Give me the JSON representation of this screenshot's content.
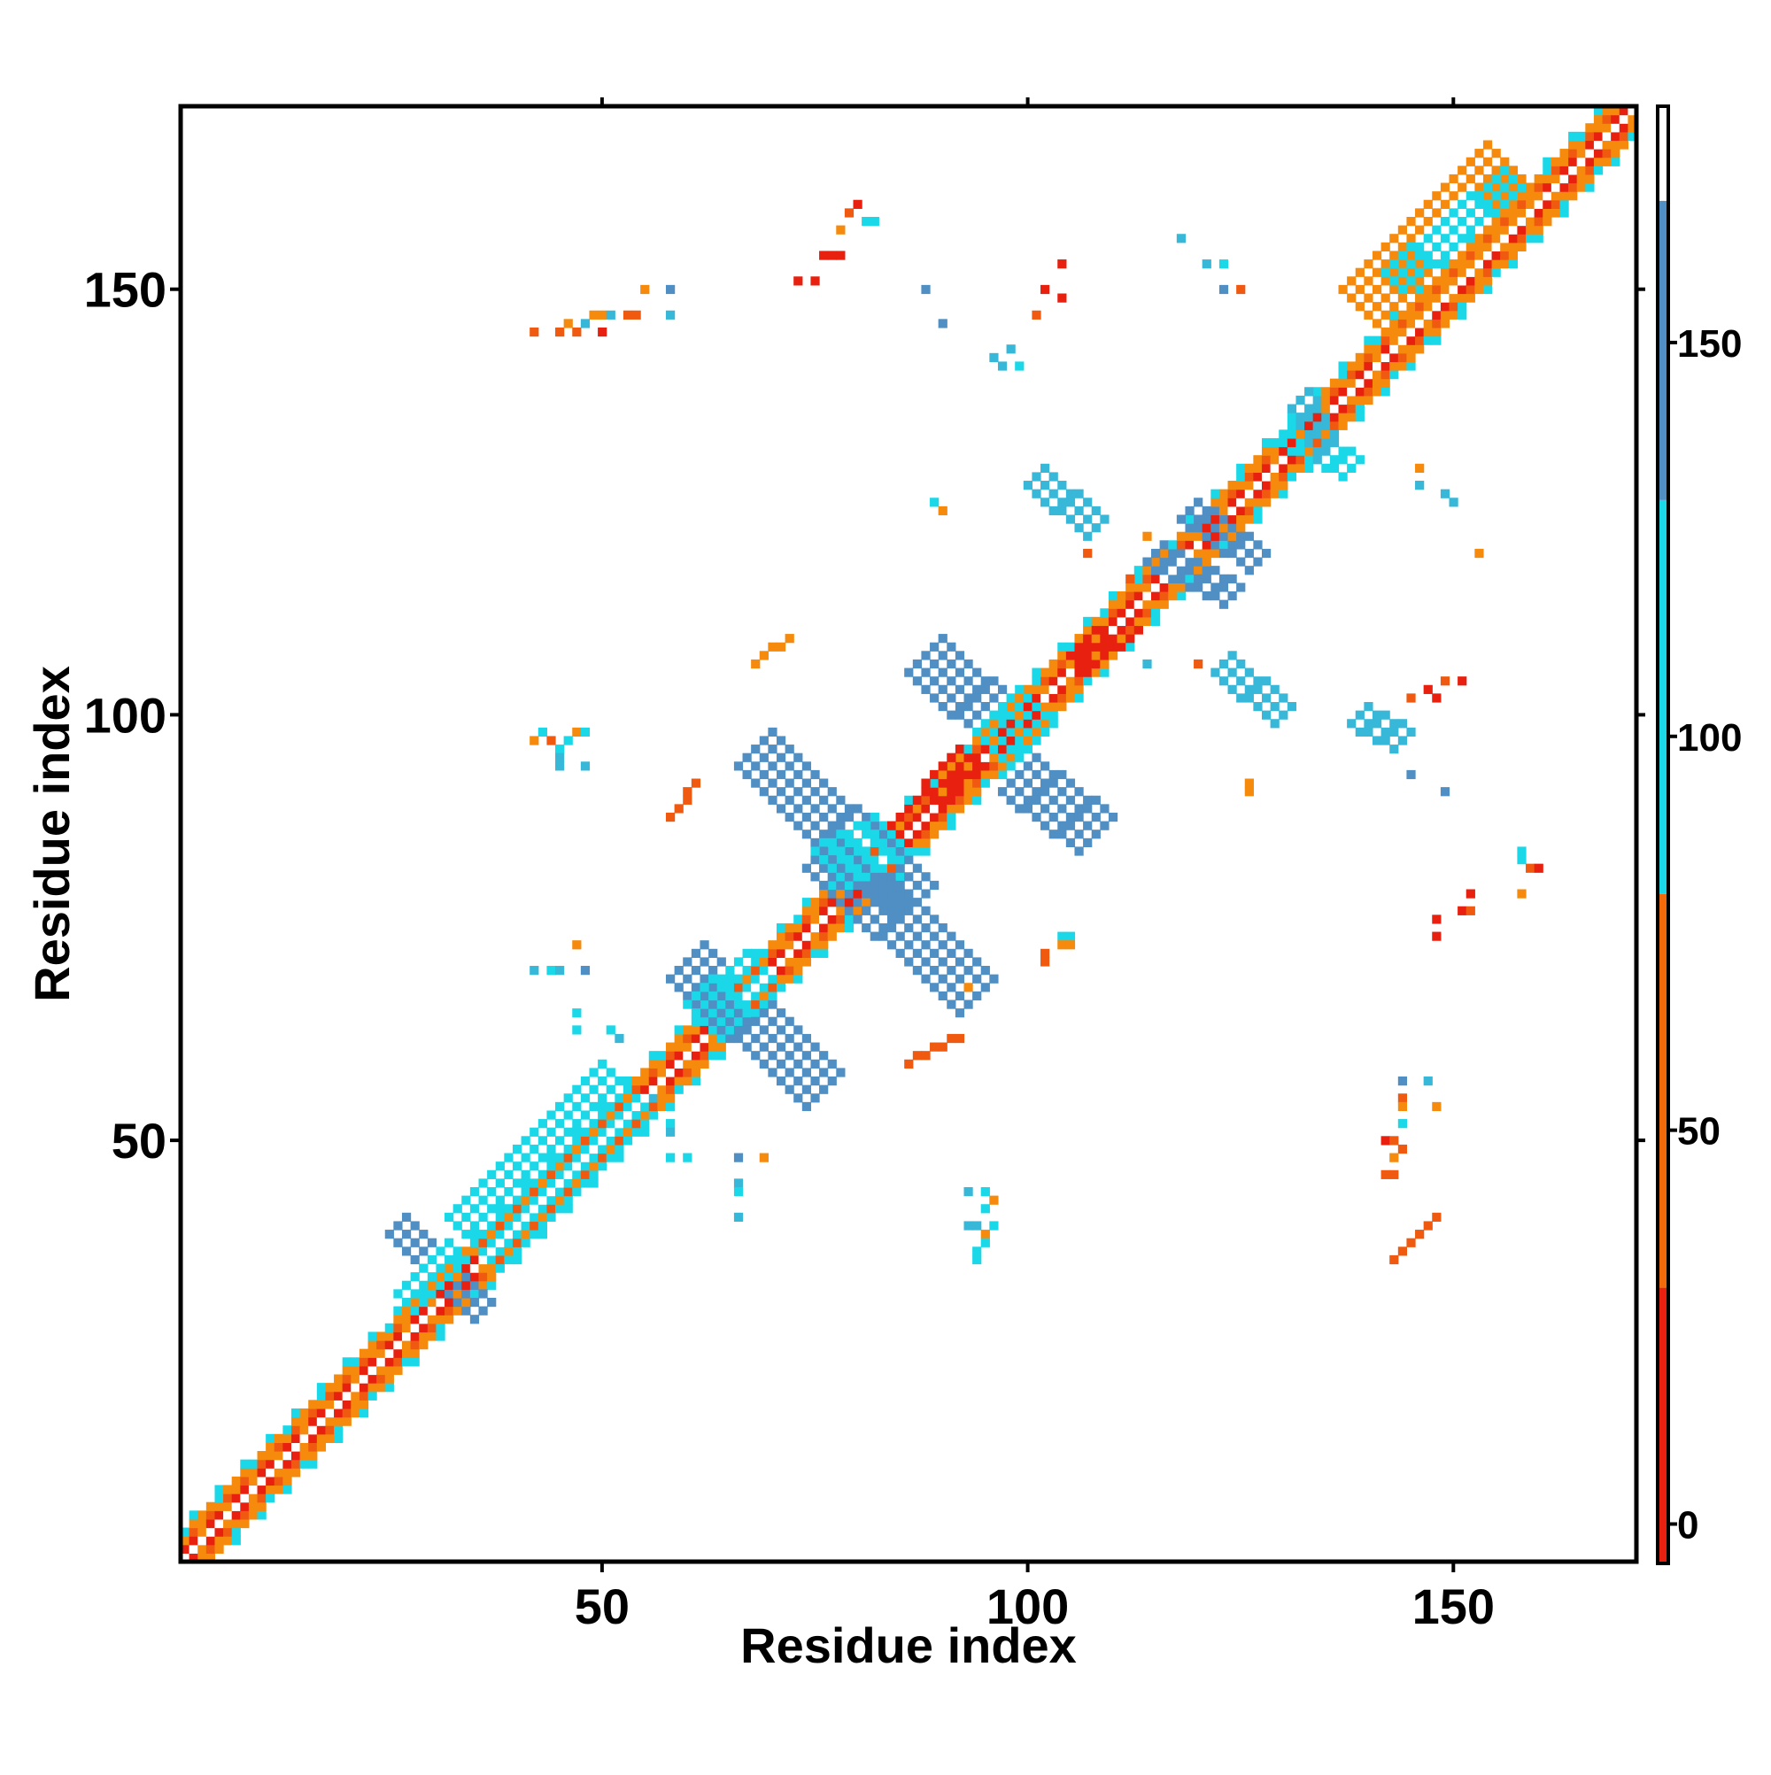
{
  "chart_data": {
    "type": "heatmap",
    "title": "",
    "xlabel": "Residue index",
    "ylabel": "Residue index",
    "xlim": [
      1,
      171
    ],
    "ylim": [
      1,
      171
    ],
    "xticks": [
      50,
      100,
      150
    ],
    "yticks": [
      50,
      100,
      150
    ],
    "grid": false,
    "colorbar": {
      "position": "right",
      "range": [
        -5,
        180
      ],
      "ticks": [
        0,
        50,
        100,
        150
      ],
      "bands": [
        {
          "from": -5,
          "to": 30,
          "color": "#e8200f"
        },
        {
          "from": 30,
          "to": 80,
          "color": "#f26a0a"
        },
        {
          "from": 80,
          "to": 130,
          "color": "#1ad8e8"
        },
        {
          "from": 130,
          "to": 168,
          "color": "#4f8fc4"
        },
        {
          "from": 168,
          "to": 180,
          "color": "#ffffff"
        }
      ]
    },
    "palette": {
      "red": "#e8200f",
      "orange_red": "#f05a10",
      "orange": "#f58a0c",
      "cyan": "#1ad8e8",
      "sky": "#38b8d8",
      "steel": "#4f8fc4"
    },
    "diagonal_band": {
      "from": 1,
      "to": 171,
      "halfwidth": 4
    },
    "segments": [
      {
        "x": [
          26,
          36
        ],
        "y": [
          40,
          30
        ],
        "color": "#4f8fc4",
        "halfwidth": 1
      },
      {
        "x": [
          27,
          33
        ],
        "y": [
          31,
          37
        ],
        "color": "#1ad8e8",
        "halfwidth": 1
      },
      {
        "x": [
          35,
          53
        ],
        "y": [
          38,
          56
        ],
        "color": "#1ad8e8",
        "halfwidth": 3
      },
      {
        "x": [
          60,
          76
        ],
        "y": [
          71,
          56
        ],
        "color": "#4f8fc4",
        "halfwidth": 2
      },
      {
        "x": [
          62,
          69
        ],
        "y": [
          64,
          70
        ],
        "color": "#1ad8e8",
        "halfwidth": 2
      },
      {
        "x": [
          68,
          87
        ],
        "y": [
          96,
          78
        ],
        "color": "#4f8fc4",
        "halfwidth": 2
      },
      {
        "x": [
          76,
          94
        ],
        "y": [
          84,
          67
        ],
        "color": "#4f8fc4",
        "halfwidth": 2
      },
      {
        "x": [
          77,
          84
        ],
        "y": [
          82,
          86
        ],
        "color": "#1ad8e8",
        "halfwidth": 2
      },
      {
        "x": [
          88,
          99
        ],
        "y": [
          107,
          97
        ],
        "color": "#4f8fc4",
        "halfwidth": 2
      },
      {
        "x": [
          99,
          108
        ],
        "y": [
          93,
          86
        ],
        "color": "#4f8fc4",
        "halfwidth": 2
      },
      {
        "x": [
          96,
          101
        ],
        "y": [
          96,
          101
        ],
        "color": "#1ad8e8",
        "halfwidth": 2
      },
      {
        "x": [
          101,
          108
        ],
        "y": [
          128,
          122
        ],
        "color": "#38b8d8",
        "halfwidth": 1
      },
      {
        "x": [
          115,
          124
        ],
        "y": [
          119,
          114
        ],
        "color": "#4f8fc4",
        "halfwidth": 1
      },
      {
        "x": [
          119,
          127
        ],
        "y": [
          124,
          118
        ],
        "color": "#4f8fc4",
        "halfwidth": 1
      },
      {
        "x": [
          130,
          138
        ],
        "y": [
          133,
          129
        ],
        "color": "#1ad8e8",
        "halfwidth": 1
      },
      {
        "x": [
          132,
          135
        ],
        "y": [
          137,
          131
        ],
        "color": "#38b8d8",
        "halfwidth": 1
      },
      {
        "x": [
          123,
          130
        ],
        "y": [
          106,
          100
        ],
        "color": "#38b8d8",
        "halfwidth": 1
      },
      {
        "x": [
          139,
          144
        ],
        "y": [
          100,
          97
        ],
        "color": "#38b8d8",
        "halfwidth": 1
      },
      {
        "x": [
          140,
          157
        ],
        "y": [
          147,
          164
        ],
        "color": "#f58a0c",
        "halfwidth": 3
      },
      {
        "x": [
          143,
          157
        ],
        "y": [
          151,
          163
        ],
        "color": "#1ad8e8",
        "halfwidth": 1
      },
      {
        "x": [
          143,
          148
        ],
        "y": [
          36,
          41
        ],
        "color": "#f05a10",
        "halfwidth": 0
      },
      {
        "x": [
          86,
          92
        ],
        "y": [
          59,
          62
        ],
        "color": "#f05a10",
        "halfwidth": 0
      },
      {
        "x": [
          58,
          61
        ],
        "y": [
          88,
          92
        ],
        "color": "#f05a10",
        "halfwidth": 0
      },
      {
        "x": [
          68,
          72
        ],
        "y": [
          106,
          109
        ],
        "color": "#f58a0c",
        "halfwidth": 0
      },
      {
        "x": [
          106,
          112
        ],
        "y": [
          106,
          111
        ],
        "color": "#e8200f",
        "halfwidth": 1
      },
      {
        "x": [
          85,
          93
        ],
        "y": [
          86,
          95
        ],
        "color": "#e8200f",
        "halfwidth": 1
      }
    ],
    "points": [
      {
        "x": 80,
        "y": 160,
        "color": "#e8200f"
      },
      {
        "x": 79,
        "y": 159,
        "color": "#f05a10"
      },
      {
        "x": 81,
        "y": 158,
        "color": "#1ad8e8"
      },
      {
        "x": 82,
        "y": 158,
        "color": "#1ad8e8"
      },
      {
        "x": 78,
        "y": 157,
        "color": "#f58a0c"
      },
      {
        "x": 76,
        "y": 154,
        "color": "#e8200f"
      },
      {
        "x": 77,
        "y": 154,
        "color": "#e8200f"
      },
      {
        "x": 78,
        "y": 154,
        "color": "#e8200f"
      },
      {
        "x": 73,
        "y": 151,
        "color": "#e8200f"
      },
      {
        "x": 75,
        "y": 151,
        "color": "#e8200f"
      },
      {
        "x": 55,
        "y": 150,
        "color": "#f58a0c"
      },
      {
        "x": 58,
        "y": 150,
        "color": "#4f8fc4"
      },
      {
        "x": 49,
        "y": 147,
        "color": "#f58a0c"
      },
      {
        "x": 50,
        "y": 147,
        "color": "#f58a0c"
      },
      {
        "x": 51,
        "y": 147,
        "color": "#38b8d8"
      },
      {
        "x": 53,
        "y": 147,
        "color": "#f05a10"
      },
      {
        "x": 54,
        "y": 147,
        "color": "#f05a10"
      },
      {
        "x": 58,
        "y": 147,
        "color": "#38b8d8"
      },
      {
        "x": 42,
        "y": 145,
        "color": "#f05a10"
      },
      {
        "x": 45,
        "y": 145,
        "color": "#f05a10"
      },
      {
        "x": 47,
        "y": 145,
        "color": "#f05a10"
      },
      {
        "x": 50,
        "y": 145,
        "color": "#e8200f"
      },
      {
        "x": 46,
        "y": 146,
        "color": "#f58a0c"
      },
      {
        "x": 48,
        "y": 146,
        "color": "#38b8d8"
      },
      {
        "x": 88,
        "y": 150,
        "color": "#4f8fc4"
      },
      {
        "x": 90,
        "y": 146,
        "color": "#4f8fc4"
      },
      {
        "x": 104,
        "y": 153,
        "color": "#e8200f"
      },
      {
        "x": 104,
        "y": 149,
        "color": "#e8200f"
      },
      {
        "x": 102,
        "y": 150,
        "color": "#e8200f"
      },
      {
        "x": 101,
        "y": 147,
        "color": "#f05a10"
      },
      {
        "x": 98,
        "y": 143,
        "color": "#38b8d8"
      },
      {
        "x": 96,
        "y": 142,
        "color": "#38b8d8"
      },
      {
        "x": 97,
        "y": 141,
        "color": "#38b8d8"
      },
      {
        "x": 99,
        "y": 141,
        "color": "#1ad8e8"
      },
      {
        "x": 118,
        "y": 156,
        "color": "#38b8d8"
      },
      {
        "x": 121,
        "y": 153,
        "color": "#38b8d8"
      },
      {
        "x": 123,
        "y": 153,
        "color": "#1ad8e8"
      },
      {
        "x": 123,
        "y": 150,
        "color": "#4f8fc4"
      },
      {
        "x": 125,
        "y": 150,
        "color": "#f05a10"
      },
      {
        "x": 89,
        "y": 125,
        "color": "#1ad8e8"
      },
      {
        "x": 90,
        "y": 124,
        "color": "#f58a0c"
      },
      {
        "x": 107,
        "y": 119,
        "color": "#f05a10"
      },
      {
        "x": 114,
        "y": 121,
        "color": "#f58a0c"
      },
      {
        "x": 112,
        "y": 116,
        "color": "#f05a10"
      },
      {
        "x": 146,
        "y": 127,
        "color": "#38b8d8"
      },
      {
        "x": 149,
        "y": 126,
        "color": "#38b8d8"
      },
      {
        "x": 150,
        "y": 125,
        "color": "#38b8d8"
      },
      {
        "x": 146,
        "y": 129,
        "color": "#f58a0c"
      },
      {
        "x": 153,
        "y": 119,
        "color": "#f58a0c"
      },
      {
        "x": 114,
        "y": 106,
        "color": "#38b8d8"
      },
      {
        "x": 120,
        "y": 106,
        "color": "#f05a10"
      },
      {
        "x": 149,
        "y": 104,
        "color": "#f05a10"
      },
      {
        "x": 151,
        "y": 104,
        "color": "#e8200f"
      },
      {
        "x": 147,
        "y": 103,
        "color": "#e8200f"
      },
      {
        "x": 145,
        "y": 102,
        "color": "#f05a10"
      },
      {
        "x": 148,
        "y": 102,
        "color": "#e8200f"
      },
      {
        "x": 145,
        "y": 93,
        "color": "#4f8fc4"
      },
      {
        "x": 149,
        "y": 91,
        "color": "#4f8fc4"
      },
      {
        "x": 126,
        "y": 91,
        "color": "#f58a0c"
      },
      {
        "x": 126,
        "y": 92,
        "color": "#f58a0c"
      },
      {
        "x": 158,
        "y": 84,
        "color": "#1ad8e8"
      },
      {
        "x": 158,
        "y": 83,
        "color": "#1ad8e8"
      },
      {
        "x": 159,
        "y": 82,
        "color": "#f05a10"
      },
      {
        "x": 160,
        "y": 82,
        "color": "#e8200f"
      },
      {
        "x": 152,
        "y": 79,
        "color": "#e8200f"
      },
      {
        "x": 151,
        "y": 77,
        "color": "#e8200f"
      },
      {
        "x": 152,
        "y": 77,
        "color": "#f05a10"
      },
      {
        "x": 158,
        "y": 79,
        "color": "#f58a0c"
      },
      {
        "x": 148,
        "y": 76,
        "color": "#e8200f"
      },
      {
        "x": 148,
        "y": 74,
        "color": "#e8200f"
      },
      {
        "x": 42,
        "y": 97,
        "color": "#f58a0c"
      },
      {
        "x": 43,
        "y": 98,
        "color": "#1ad8e8"
      },
      {
        "x": 44,
        "y": 97,
        "color": "#f05a10"
      },
      {
        "x": 45,
        "y": 96,
        "color": "#1ad8e8"
      },
      {
        "x": 46,
        "y": 97,
        "color": "#1ad8e8"
      },
      {
        "x": 47,
        "y": 98,
        "color": "#f58a0c"
      },
      {
        "x": 48,
        "y": 98,
        "color": "#1ad8e8"
      },
      {
        "x": 45,
        "y": 95,
        "color": "#38b8d8"
      },
      {
        "x": 45,
        "y": 94,
        "color": "#38b8d8"
      },
      {
        "x": 48,
        "y": 94,
        "color": "#38b8d8"
      },
      {
        "x": 42,
        "y": 70,
        "color": "#38b8d8"
      },
      {
        "x": 44,
        "y": 70,
        "color": "#1ad8e8"
      },
      {
        "x": 45,
        "y": 70,
        "color": "#38b8d8"
      },
      {
        "x": 48,
        "y": 70,
        "color": "#4f8fc4"
      },
      {
        "x": 47,
        "y": 73,
        "color": "#f58a0c"
      },
      {
        "x": 47,
        "y": 65,
        "color": "#1ad8e8"
      },
      {
        "x": 47,
        "y": 63,
        "color": "#1ad8e8"
      },
      {
        "x": 51,
        "y": 63,
        "color": "#1ad8e8"
      },
      {
        "x": 52,
        "y": 62,
        "color": "#38b8d8"
      },
      {
        "x": 56,
        "y": 55,
        "color": "#38b8d8"
      },
      {
        "x": 58,
        "y": 52,
        "color": "#1ad8e8"
      },
      {
        "x": 58,
        "y": 51,
        "color": "#38b8d8"
      },
      {
        "x": 58,
        "y": 48,
        "color": "#1ad8e8"
      },
      {
        "x": 60,
        "y": 48,
        "color": "#1ad8e8"
      },
      {
        "x": 66,
        "y": 48,
        "color": "#4f8fc4"
      },
      {
        "x": 69,
        "y": 48,
        "color": "#f58a0c"
      },
      {
        "x": 66,
        "y": 45,
        "color": "#38b8d8"
      },
      {
        "x": 66,
        "y": 44,
        "color": "#1ad8e8"
      },
      {
        "x": 66,
        "y": 41,
        "color": "#38b8d8"
      },
      {
        "x": 93,
        "y": 44,
        "color": "#38b8d8"
      },
      {
        "x": 95,
        "y": 44,
        "color": "#1ad8e8"
      },
      {
        "x": 96,
        "y": 43,
        "color": "#f58a0c"
      },
      {
        "x": 95,
        "y": 42,
        "color": "#1ad8e8"
      },
      {
        "x": 93,
        "y": 40,
        "color": "#38b8d8"
      },
      {
        "x": 94,
        "y": 40,
        "color": "#38b8d8"
      },
      {
        "x": 96,
        "y": 40,
        "color": "#1ad8e8"
      },
      {
        "x": 95,
        "y": 39,
        "color": "#f58a0c"
      },
      {
        "x": 95,
        "y": 38,
        "color": "#1ad8e8"
      },
      {
        "x": 94,
        "y": 37,
        "color": "#1ad8e8"
      },
      {
        "x": 94,
        "y": 36,
        "color": "#1ad8e8"
      },
      {
        "x": 104,
        "y": 74,
        "color": "#1ad8e8"
      },
      {
        "x": 105,
        "y": 74,
        "color": "#1ad8e8"
      },
      {
        "x": 104,
        "y": 73,
        "color": "#f58a0c"
      },
      {
        "x": 105,
        "y": 73,
        "color": "#f58a0c"
      },
      {
        "x": 102,
        "y": 72,
        "color": "#f05a10"
      },
      {
        "x": 102,
        "y": 71,
        "color": "#f05a10"
      },
      {
        "x": 93,
        "y": 68,
        "color": "#f58a0c"
      },
      {
        "x": 144,
        "y": 57,
        "color": "#4f8fc4"
      },
      {
        "x": 147,
        "y": 57,
        "color": "#38b8d8"
      },
      {
        "x": 144,
        "y": 55,
        "color": "#f05a10"
      },
      {
        "x": 144,
        "y": 54,
        "color": "#f58a0c"
      },
      {
        "x": 148,
        "y": 54,
        "color": "#f58a0c"
      },
      {
        "x": 144,
        "y": 52,
        "color": "#1ad8e8"
      },
      {
        "x": 144,
        "y": 49,
        "color": "#f05a10"
      },
      {
        "x": 143,
        "y": 48,
        "color": "#f58a0c"
      },
      {
        "x": 142,
        "y": 46,
        "color": "#f05a10"
      },
      {
        "x": 143,
        "y": 46,
        "color": "#f05a10"
      },
      {
        "x": 142,
        "y": 50,
        "color": "#e8200f"
      },
      {
        "x": 143,
        "y": 50,
        "color": "#f05a10"
      }
    ]
  }
}
